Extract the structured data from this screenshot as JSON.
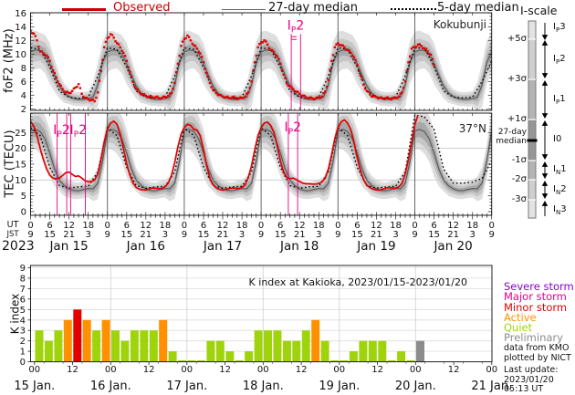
{
  "colors": {
    "observed": "#cc0000",
    "median27": "#555555",
    "median5": "#000000",
    "band_inner": "#a8a8a8",
    "band_mid": "#c6c6c6",
    "band_outer": "#dedede",
    "event": "#e6007e",
    "quiet": "#9fd40c",
    "active": "#ff9000",
    "minor_storm": "#e30000",
    "major_storm": "#e8008c",
    "severe_storm": "#8800cc",
    "preliminary": "#8c8c8c"
  },
  "top_legend": [
    {
      "label": "Observed"
    },
    {
      "label": "27-day median"
    },
    {
      "label": "5-day median"
    }
  ],
  "panels": {
    "fof2": {
      "ylabel": "foF2 (MHz)",
      "station": "Kokubunji",
      "yticks": [
        2,
        4,
        6,
        8,
        10,
        12,
        14,
        16
      ]
    },
    "tec": {
      "ylabel": "TEC (TECU)",
      "station": "37°N",
      "yticks": [
        0,
        5,
        10,
        15,
        20,
        25
      ],
      "hgrid": [
        10,
        20
      ]
    }
  },
  "time_axis": {
    "ut_label": "UT",
    "jst_label": "JST",
    "year": "2023",
    "ut_ticks": [
      "0",
      "6",
      "12",
      "18",
      "0",
      "6",
      "12",
      "18",
      "0",
      "6",
      "12",
      "18",
      "0",
      "6",
      "12",
      "18",
      "0",
      "6",
      "12",
      "18",
      "0",
      "6",
      "12",
      "18",
      "0"
    ],
    "jst_ticks": [
      "9",
      "15",
      "21",
      "3",
      "9",
      "15",
      "21",
      "3",
      "9",
      "15",
      "21",
      "3",
      "9",
      "15",
      "21",
      "3",
      "9",
      "15",
      "21",
      "3",
      "9",
      "15",
      "21",
      "3",
      "9"
    ],
    "dates": [
      "Jan 15",
      "Jan 16",
      "Jan 17",
      "Jan 18",
      "Jan 19",
      "Jan 20"
    ]
  },
  "iscale": {
    "title": "I-scale",
    "sigma_labels": [
      "+5σ",
      "+3σ",
      "+1σ",
      "-1σ",
      "-2σ",
      "-3σ"
    ],
    "median_label": [
      "27-day",
      "median"
    ],
    "levels": [
      {
        "pre": "I",
        "sub": "P",
        "post": "3"
      },
      {
        "pre": "I",
        "sub": "P",
        "post": "2"
      },
      {
        "pre": "I",
        "sub": "P",
        "post": "1"
      },
      {
        "pre": "I",
        "sub": "",
        "post": "0"
      },
      {
        "pre": "I",
        "sub": "N",
        "post": "1"
      },
      {
        "pre": "I",
        "sub": "N",
        "post": "2"
      },
      {
        "pre": "I",
        "sub": "N",
        "post": "3"
      }
    ]
  },
  "events": [
    {
      "panel": "tec",
      "lines_h": [
        8.3,
        11.3
      ],
      "label": {
        "pre": "I",
        "sub": "P",
        "post": "2"
      },
      "label_h": 9.7,
      "label_v": 24.5,
      "double_dash": false
    },
    {
      "panel": "tec",
      "lines_h": [
        12.5,
        17.1
      ],
      "label": {
        "pre": "I",
        "sub": "P",
        "post": "2"
      },
      "label_h": 14.9,
      "label_v": 24.5,
      "double_dash": false
    },
    {
      "panel": "fof2",
      "lines_h": [
        81.4,
        84.3
      ],
      "label": {
        "pre": "I",
        "sub": "P",
        "post": "2"
      },
      "label_h": 82.8,
      "label_v": 13.6,
      "double_dash": true
    },
    {
      "panel": "tec",
      "lines_h": [
        80.5,
        83.4
      ],
      "label": {
        "pre": "I",
        "sub": "P",
        "post": "2"
      },
      "label_h": 81.9,
      "label_v": 25.4,
      "double_dash": false
    }
  ],
  "kchart": {
    "title": "K index at Kakioka, 2023/01/15-2023/01/20",
    "ylabel": "K index",
    "yticks": [
      "0",
      "1",
      "2",
      "3",
      "4",
      "5",
      "6",
      "7",
      "8",
      "9"
    ],
    "legend": [
      {
        "label": "Severe storm",
        "color_key": "severe_storm"
      },
      {
        "label": "Major storm",
        "color_key": "major_storm"
      },
      {
        "label": "Minor storm",
        "color_key": "minor_storm"
      },
      {
        "label": "Active",
        "color_key": "active"
      },
      {
        "label": "Quiet",
        "color_key": "quiet"
      },
      {
        "label": "Preliminary",
        "color_key": "preliminary"
      }
    ],
    "credits": [
      "data from KMO",
      "plotted by NICT"
    ],
    "last_update": [
      "Last update:",
      "2023/01/20 05:13 UT"
    ]
  },
  "chart_data": [
    {
      "id": "fof2",
      "type": "scatter+bands",
      "title": "foF2 at Kokubunji",
      "x_unit": "UT hours from 2023-01-15 00:00",
      "ylabel": "foF2 (MHz)",
      "ylim": [
        1.6,
        16.3
      ],
      "observed_step_h": 1,
      "observed": [
        13.4,
        13.0,
        12.0,
        10.4,
        10.1,
        9.8,
        9.0,
        7.6,
        6.6,
        5.6,
        4.9,
        4.4,
        4.3,
        4.6,
        5.1,
        5.6,
        4.2,
        3.6,
        3.4,
        3.3,
        3.1,
        4.4,
        7.5,
        11.0,
        12.3,
        12.9,
        12.4,
        11.6,
        11.0,
        10.2,
        9.0,
        7.4,
        5.9,
        4.9,
        4.4,
        4.1,
        3.9,
        3.8,
        3.7,
        3.7,
        3.6,
        3.6,
        3.7,
        3.9,
        4.3,
        5.8,
        8.6,
        11.2,
        12.2,
        12.7,
        12.0,
        11.3,
        10.8,
        10.1,
        8.8,
        7.2,
        5.8,
        4.8,
        4.3,
        4.0,
        3.8,
        3.7,
        3.6,
        3.7,
        3.6,
        3.5,
        3.6,
        3.8,
        4.4,
        6.0,
        8.8,
        11.0,
        11.7,
        12.0,
        11.4,
        10.6,
        10.3,
        9.7,
        8.6,
        7.0,
        5.7,
        5.3,
        4.9,
        4.5,
        4.2,
        3.9,
        3.7,
        3.6,
        3.5,
        3.5,
        3.6,
        3.8,
        4.5,
        6.2,
        9.0,
        11.0,
        11.6,
        11.3,
        11.0,
        10.6,
        10.2,
        9.5,
        8.4,
        6.9,
        5.5,
        4.6,
        4.1,
        3.8,
        3.7,
        3.6,
        3.5,
        3.6,
        3.5,
        3.5,
        3.6,
        3.8,
        4.4,
        6.0,
        8.8,
        10.8,
        11.0,
        11.4,
        11.2,
        10.8,
        10.4,
        9.9,
        8.4
      ],
      "median27": {
        "step_h": 1.5,
        "daily_pattern": [
          10.3,
          10.6,
          10.5,
          10.0,
          8.6,
          6.9,
          5.3,
          4.3,
          3.8,
          3.5,
          3.4,
          3.4,
          3.5,
          3.7,
          5.5,
          8.8
        ],
        "end_value": 10.3
      },
      "median5": {
        "step_h": 3,
        "daily_pattern": [
          10.9,
          10.7,
          8.1,
          4.6,
          3.7,
          3.5,
          3.7,
          6.8
        ],
        "day6": [
          10.9,
          10.9,
          8.2,
          4.6,
          3.7,
          3.6,
          3.7,
          6.0,
          9.0
        ]
      },
      "bands": {
        "step_h": 3,
        "inner_hw": [
          0.8,
          0.75,
          0.95,
          0.5,
          0.3,
          0.3,
          0.3,
          0.9
        ],
        "mid_hw": [
          1.8,
          1.5,
          1.9,
          1.0,
          0.7,
          0.6,
          0.7,
          1.8
        ],
        "outer_hw": [
          3.0,
          2.6,
          3.0,
          1.8,
          1.1,
          1.0,
          1.1,
          3.2
        ]
      }
    },
    {
      "id": "tec",
      "type": "line+bands",
      "title": "TEC at 37N",
      "x_unit": "UT hours from 2023-01-15 00:00",
      "ylabel": "TEC (TECU)",
      "ylim": [
        0,
        31.1
      ],
      "observed_step_h": 1,
      "observed": [
        28.5,
        27.0,
        24.0,
        20.0,
        16.5,
        13.5,
        11.5,
        10.6,
        10.3,
        10.6,
        11.4,
        12.3,
        12.5,
        11.8,
        11.1,
        11.3,
        10.6,
        9.8,
        9.4,
        9.5,
        10.0,
        12.0,
        16.5,
        22.0,
        26.0,
        28.0,
        28.6,
        27.6,
        24.5,
        20.0,
        15.0,
        11.5,
        9.0,
        7.6,
        7.1,
        6.9,
        6.8,
        7.2,
        7.5,
        7.4,
        7.3,
        7.3,
        7.9,
        9.0,
        11.5,
        15.5,
        20.5,
        24.5,
        26.5,
        27.6,
        27.2,
        26.0,
        25.8,
        24.0,
        19.5,
        14.5,
        10.5,
        8.5,
        7.5,
        7.0,
        6.8,
        7.0,
        7.3,
        7.5,
        7.4,
        7.3,
        7.6,
        8.5,
        10.8,
        14.5,
        19.5,
        24.0,
        26.5,
        28.0,
        28.3,
        27.2,
        25.0,
        21.0,
        16.0,
        12.5,
        10.8,
        10.4,
        10.6,
        10.1,
        9.5,
        9.0,
        8.8,
        8.8,
        8.7,
        8.7,
        8.9,
        9.4,
        10.6,
        13.5,
        18.0,
        23.0,
        26.5,
        28.4,
        29.0,
        28.0,
        26.0,
        22.0,
        17.0,
        13.0,
        10.0,
        8.4,
        7.6,
        7.1,
        6.9,
        6.8,
        7.1,
        7.4,
        7.6,
        7.5,
        7.4,
        7.8,
        9.0,
        12.0,
        16.5,
        22.0,
        27.5,
        30.5
      ],
      "median27": {
        "step_h": 1.5,
        "daily_pattern": [
          25.5,
          26.0,
          25.3,
          23.0,
          18.5,
          13.5,
          10.0,
          8.2,
          7.2,
          6.7,
          6.6,
          7.0,
          7.3,
          7.2,
          9.0,
          16.0
        ],
        "end_value": 25.5
      },
      "median5": {
        "step_h": 3,
        "daily_pattern": [
          26.5,
          24.0,
          14.0,
          8.2,
          7.4,
          7.8,
          8.0,
          12.5
        ],
        "day6": [
          30.5,
          30.0,
          26.0,
          13.5,
          9.0,
          9.0,
          9.3,
          10.5,
          16.0
        ]
      },
      "bands": {
        "step_h": 3,
        "inner_hw": [
          2.2,
          2.6,
          2.6,
          1.2,
          0.85,
          0.8,
          0.85,
          1.7
        ],
        "mid_hw": [
          3.8,
          4.8,
          4.8,
          2.3,
          1.7,
          1.5,
          1.7,
          3.2
        ],
        "outer_hw": [
          5.8,
          7.0,
          7.5,
          3.6,
          2.8,
          2.6,
          2.8,
          5.0
        ]
      }
    },
    {
      "id": "kindex",
      "type": "bar",
      "hours_per_bar": 3,
      "ylim": [
        0,
        9
      ],
      "days": [
        {
          "date": "15 Jan.",
          "values": [
            3,
            2,
            3,
            4,
            5,
            4,
            3,
            4
          ],
          "levels": [
            "quiet",
            "quiet",
            "quiet",
            "active",
            "minor_storm",
            "active",
            "quiet",
            "active"
          ]
        },
        {
          "date": "16 Jan.",
          "values": [
            3,
            2,
            3,
            3,
            3,
            4,
            1,
            0
          ],
          "levels": [
            "quiet",
            "quiet",
            "quiet",
            "quiet",
            "quiet",
            "active",
            "quiet",
            "quiet"
          ]
        },
        {
          "date": "17 Jan.",
          "values": [
            0,
            0,
            2,
            2,
            1,
            0,
            1,
            3
          ],
          "levels": [
            "quiet",
            "quiet",
            "quiet",
            "quiet",
            "quiet",
            "quiet",
            "quiet",
            "quiet"
          ]
        },
        {
          "date": "18 Jan.",
          "values": [
            3,
            3,
            2,
            2,
            3,
            4,
            2,
            0
          ],
          "levels": [
            "quiet",
            "quiet",
            "quiet",
            "quiet",
            "quiet",
            "active",
            "quiet",
            "quiet"
          ]
        },
        {
          "date": "19 Jan.",
          "values": [
            0,
            1,
            2,
            2,
            2,
            0,
            1,
            0
          ],
          "levels": [
            "quiet",
            "quiet",
            "quiet",
            "quiet",
            "quiet",
            "quiet",
            "quiet",
            "quiet"
          ]
        },
        {
          "date": "20 Jan.",
          "values": [
            2
          ],
          "levels": [
            "preliminary"
          ]
        },
        {
          "date": "21 Jan.",
          "values": [],
          "levels": []
        }
      ],
      "xtick_major": [
        "00",
        "12"
      ]
    }
  ]
}
